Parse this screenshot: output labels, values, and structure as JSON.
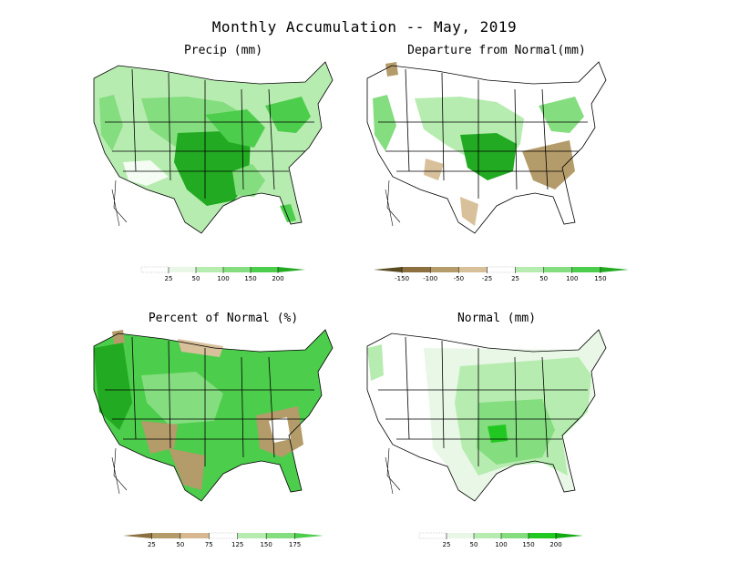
{
  "title": "Monthly Accumulation -- May, 2019",
  "panels": [
    {
      "title": "Precip (mm)",
      "scale": "precip"
    },
    {
      "title": "Departure from Normal(mm)",
      "scale": "departure"
    },
    {
      "title": "Percent of Normal (%)",
      "scale": "percent"
    },
    {
      "title": "Normal (mm)",
      "scale": "normal"
    }
  ],
  "legends": {
    "precip": {
      "ticks": [
        "25",
        "50",
        "100",
        "150",
        "200"
      ],
      "colors": [
        "#ffffff",
        "#e8f7e6",
        "#b7ecb0",
        "#84dd7f",
        "#4ccd4c",
        "#22aa22"
      ]
    },
    "departure": {
      "ticks": [
        "-150",
        "-100",
        "-50",
        "-25",
        "25",
        "50",
        "100",
        "150"
      ],
      "colors": [
        "#5a4a22",
        "#8c7040",
        "#b49b6a",
        "#d8c09a",
        "#ffffff",
        "#b7ecb0",
        "#84dd7f",
        "#4ccd4c",
        "#22aa22"
      ]
    },
    "percent": {
      "ticks": [
        "25",
        "50",
        "75",
        "125",
        "150",
        "175"
      ],
      "colors": [
        "#8c7040",
        "#b49b6a",
        "#d8b890",
        "#ffffff",
        "#b7ecb0",
        "#84dd7f",
        "#4ccd4c"
      ]
    },
    "normal": {
      "ticks": [
        "25",
        "50",
        "100",
        "150",
        "200"
      ],
      "colors": [
        "#ffffff",
        "#e8f7e6",
        "#b7ecb0",
        "#84dd7f",
        "#22c822",
        "#11aa11"
      ]
    }
  },
  "colors": {
    "lightgreen": "#c8efc2",
    "midgreen": "#84dd7f",
    "green": "#4ccd4c",
    "darkgreen": "#22aa22",
    "tan": "#b49b6a",
    "lighttan": "#d8c09a"
  }
}
